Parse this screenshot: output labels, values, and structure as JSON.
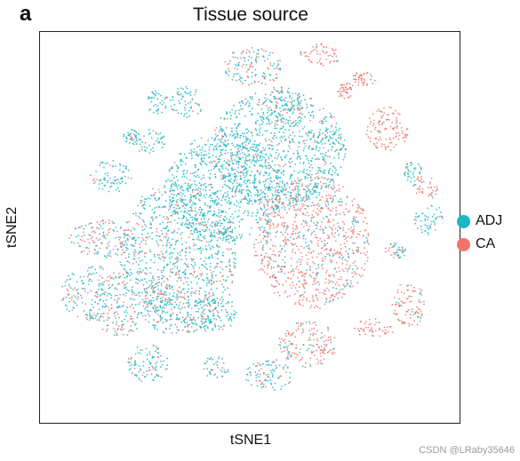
{
  "panel_letter": "a",
  "watermark": "CSDN @LRaby35646",
  "colors": {
    "ADJ": "#1ab8c2",
    "CA": "#f0736b",
    "axis": "#222222"
  },
  "chart_data": {
    "type": "scatter",
    "title": "Tissue source",
    "xlabel": "tSNE1",
    "ylabel": "tSNE2",
    "grid": false,
    "ticks": false,
    "legend_position": "right",
    "series": [
      {
        "name": "ADJ",
        "color": "#1ab8c2"
      },
      {
        "name": "CA",
        "color": "#f0736b"
      }
    ],
    "clusters": [
      {
        "cx": 0.33,
        "cy": 0.58,
        "rx": 0.14,
        "ry": 0.2,
        "ca_frac": 0.25
      },
      {
        "cx": 0.44,
        "cy": 0.4,
        "rx": 0.14,
        "ry": 0.14,
        "ca_frac": 0.08
      },
      {
        "cx": 0.65,
        "cy": 0.54,
        "rx": 0.14,
        "ry": 0.17,
        "ca_frac": 0.72
      },
      {
        "cx": 0.57,
        "cy": 0.3,
        "rx": 0.16,
        "ry": 0.15,
        "ca_frac": 0.15
      },
      {
        "cx": 0.42,
        "cy": 0.86,
        "rx": 0.03,
        "ry": 0.03,
        "ca_frac": 0.2
      },
      {
        "cx": 0.55,
        "cy": 0.88,
        "rx": 0.06,
        "ry": 0.04,
        "ca_frac": 0.3
      },
      {
        "cx": 0.64,
        "cy": 0.8,
        "rx": 0.07,
        "ry": 0.06,
        "ca_frac": 0.75
      },
      {
        "cx": 0.8,
        "cy": 0.76,
        "rx": 0.05,
        "ry": 0.025,
        "ca_frac": 0.95
      },
      {
        "cx": 0.88,
        "cy": 0.7,
        "rx": 0.04,
        "ry": 0.06,
        "ca_frac": 0.85
      },
      {
        "cx": 0.85,
        "cy": 0.56,
        "rx": 0.025,
        "ry": 0.02,
        "ca_frac": 0.5
      },
      {
        "cx": 0.93,
        "cy": 0.48,
        "rx": 0.035,
        "ry": 0.04,
        "ca_frac": 0.15
      },
      {
        "cx": 0.92,
        "cy": 0.4,
        "rx": 0.03,
        "ry": 0.03,
        "ca_frac": 0.85
      },
      {
        "cx": 0.89,
        "cy": 0.36,
        "rx": 0.025,
        "ry": 0.03,
        "ca_frac": 0.2
      },
      {
        "cx": 0.83,
        "cy": 0.25,
        "rx": 0.05,
        "ry": 0.06,
        "ca_frac": 0.95
      },
      {
        "cx": 0.73,
        "cy": 0.15,
        "rx": 0.02,
        "ry": 0.02,
        "ca_frac": 0.9
      },
      {
        "cx": 0.69,
        "cy": 0.28,
        "rx": 0.04,
        "ry": 0.03,
        "ca_frac": 0.3
      },
      {
        "cx": 0.58,
        "cy": 0.19,
        "rx": 0.05,
        "ry": 0.05,
        "ca_frac": 0.35
      },
      {
        "cx": 0.35,
        "cy": 0.18,
        "rx": 0.04,
        "ry": 0.04,
        "ca_frac": 0.1
      },
      {
        "cx": 0.26,
        "cy": 0.28,
        "rx": 0.04,
        "ry": 0.03,
        "ca_frac": 0.1
      },
      {
        "cx": 0.17,
        "cy": 0.37,
        "rx": 0.05,
        "ry": 0.04,
        "ca_frac": 0.15
      },
      {
        "cx": 0.15,
        "cy": 0.53,
        "rx": 0.08,
        "ry": 0.05,
        "ca_frac": 0.5
      },
      {
        "cx": 0.13,
        "cy": 0.67,
        "rx": 0.08,
        "ry": 0.07,
        "ca_frac": 0.4
      },
      {
        "cx": 0.19,
        "cy": 0.74,
        "rx": 0.05,
        "ry": 0.04,
        "ca_frac": 0.4
      },
      {
        "cx": 0.29,
        "cy": 0.68,
        "rx": 0.05,
        "ry": 0.04,
        "ca_frac": 0.3
      },
      {
        "cx": 0.26,
        "cy": 0.85,
        "rx": 0.05,
        "ry": 0.05,
        "ca_frac": 0.25
      },
      {
        "cx": 0.41,
        "cy": 0.72,
        "rx": 0.06,
        "ry": 0.05,
        "ca_frac": 0.2
      },
      {
        "cx": 0.28,
        "cy": 0.18,
        "rx": 0.025,
        "ry": 0.03,
        "ca_frac": 0.1
      },
      {
        "cx": 0.22,
        "cy": 0.27,
        "rx": 0.02,
        "ry": 0.02,
        "ca_frac": 0.15
      },
      {
        "cx": 0.51,
        "cy": 0.09,
        "rx": 0.07,
        "ry": 0.05,
        "ca_frac": 0.45
      },
      {
        "cx": 0.67,
        "cy": 0.06,
        "rx": 0.05,
        "ry": 0.03,
        "ca_frac": 0.85
      },
      {
        "cx": 0.77,
        "cy": 0.12,
        "rx": 0.03,
        "ry": 0.02,
        "ca_frac": 0.95
      }
    ]
  }
}
